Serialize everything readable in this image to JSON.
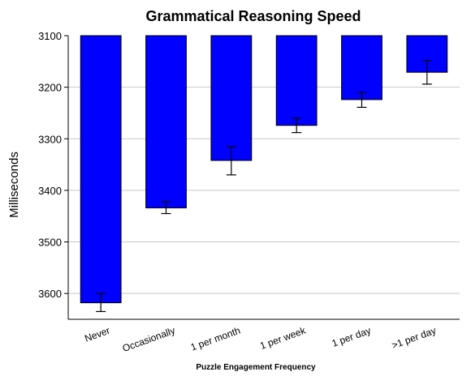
{
  "chart_data": {
    "type": "bar",
    "title": "Grammatical Reasoning Speed",
    "xlabel": "Puzzle Engagement Frequency",
    "ylabel": "Milliseconds",
    "categories": [
      "Never",
      "Occasionally",
      "1 per month",
      "1 per week",
      "1 per day",
      ">1 per day"
    ],
    "values": [
      3618,
      3434,
      3342,
      3274,
      3224,
      3171
    ],
    "error_low": [
      3600,
      3422,
      3315,
      3260,
      3210,
      3148
    ],
    "error_high": [
      3635,
      3445,
      3370,
      3288,
      3239,
      3194
    ],
    "ylim": [
      3100,
      3650
    ],
    "y_inverted": true,
    "yticks": [
      3100,
      3200,
      3300,
      3400,
      3500,
      3600
    ],
    "grid": true,
    "bar_color": "#0000FF",
    "bar_edge_color": "#000000",
    "grid_color": "#c8c8c8"
  }
}
